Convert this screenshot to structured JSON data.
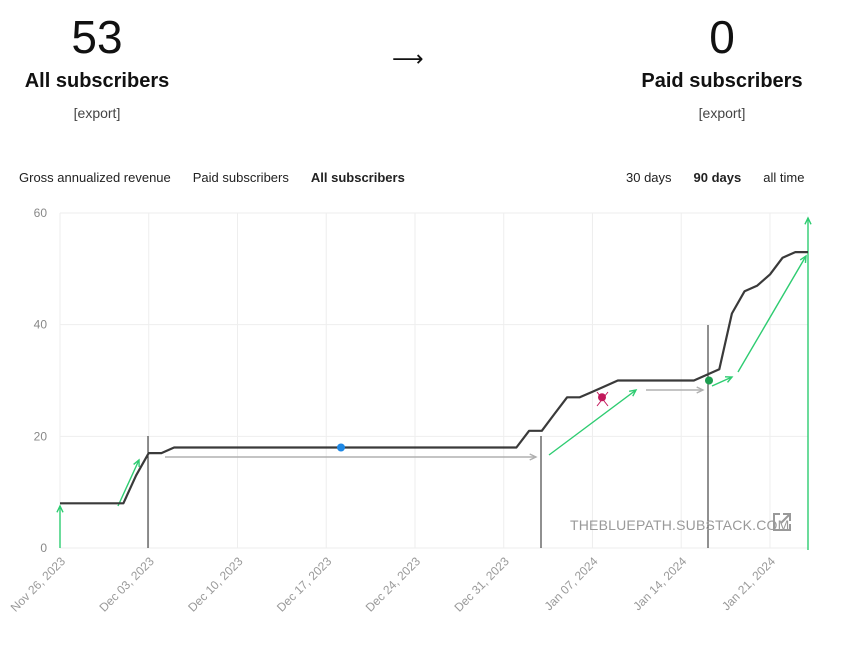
{
  "summary": {
    "all_count": "53",
    "all_label": "All subscribers",
    "all_export": "[export]",
    "arrow": "⟶",
    "paid_count": "0",
    "paid_label": "Paid subscribers",
    "paid_export": "[export]"
  },
  "tabs": {
    "metrics": [
      "Gross annualized revenue",
      "Paid subscribers",
      "All subscribers"
    ],
    "active_metric": 2,
    "ranges": [
      "30 days",
      "90 days",
      "all time"
    ],
    "active_range": 1
  },
  "watermark": "THEBLUEPATH.SUBSTACK.COM",
  "colors": {
    "line": "#3a3a3a",
    "grid": "#eeeeee",
    "arrow_green": "#2ecc71",
    "point_blue": "#1e88e5",
    "point_magenta": "#c2185b",
    "point_green": "#1e9e50",
    "gray_arrow": "#b0b0b0"
  },
  "chart_data": {
    "type": "line",
    "title": "",
    "xlabel": "",
    "ylabel": "",
    "ylim": [
      0,
      60
    ],
    "yticks": [
      0,
      20,
      40,
      60
    ],
    "grid": true,
    "x_tick_labels": [
      "Nov 26, 2023",
      "Dec 03, 2023",
      "Dec 10, 2023",
      "Dec 17, 2023",
      "Dec 24, 2023",
      "Dec 31, 2023",
      "Jan 07, 2024",
      "Jan 14, 2024",
      "Jan 21, 2024"
    ],
    "series": [
      {
        "x": [
          "2023-11-26",
          "2023-11-27",
          "2023-11-28",
          "2023-11-29",
          "2023-11-30",
          "2023-12-01",
          "2023-12-02",
          "2023-12-03",
          "2023-12-04",
          "2023-12-05",
          "2023-12-31",
          "2024-01-01",
          "2024-01-02",
          "2024-01-03",
          "2024-01-04",
          "2024-01-05",
          "2024-01-06",
          "2024-01-07",
          "2024-01-08",
          "2024-01-09",
          "2024-01-10",
          "2024-01-11",
          "2024-01-12",
          "2024-01-13",
          "2024-01-14",
          "2024-01-15",
          "2024-01-16",
          "2024-01-17",
          "2024-01-18",
          "2024-01-19",
          "2024-01-20",
          "2024-01-21",
          "2024-01-22",
          "2024-01-23",
          "2024-01-24"
        ],
        "values": [
          8,
          8,
          8,
          8,
          8,
          8,
          13,
          17,
          17,
          18,
          18,
          18,
          21,
          21,
          24,
          27,
          27,
          28,
          29,
          30,
          30,
          30,
          30,
          30,
          30,
          30,
          31,
          32,
          42,
          46,
          47,
          49,
          52,
          53,
          53
        ]
      }
    ]
  }
}
